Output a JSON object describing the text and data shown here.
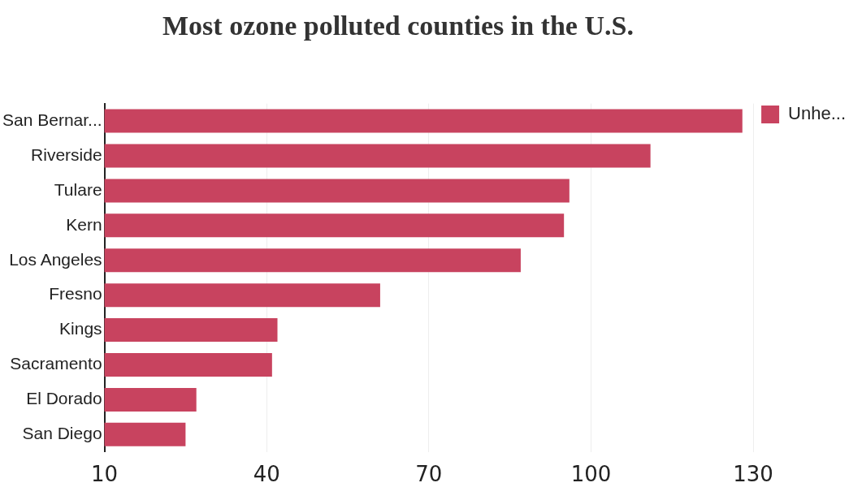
{
  "chart_data": {
    "type": "bar",
    "orientation": "horizontal",
    "title": "Most ozone polluted counties in the U.S.",
    "categories": [
      "San Bernar...",
      "Riverside",
      "Tulare",
      "Kern",
      "Los Angeles",
      "Fresno",
      "Kings",
      "Sacramento",
      "El Dorado",
      "San Diego"
    ],
    "series": [
      {
        "name": "Unhe...",
        "color": "#c8435f",
        "values": [
          128,
          111,
          96,
          95,
          87,
          61,
          42,
          41,
          27,
          25
        ]
      }
    ],
    "xlim": [
      10,
      130
    ],
    "xticks": [
      10,
      40,
      70,
      100,
      130
    ],
    "grid": "x",
    "legend": "top right"
  }
}
